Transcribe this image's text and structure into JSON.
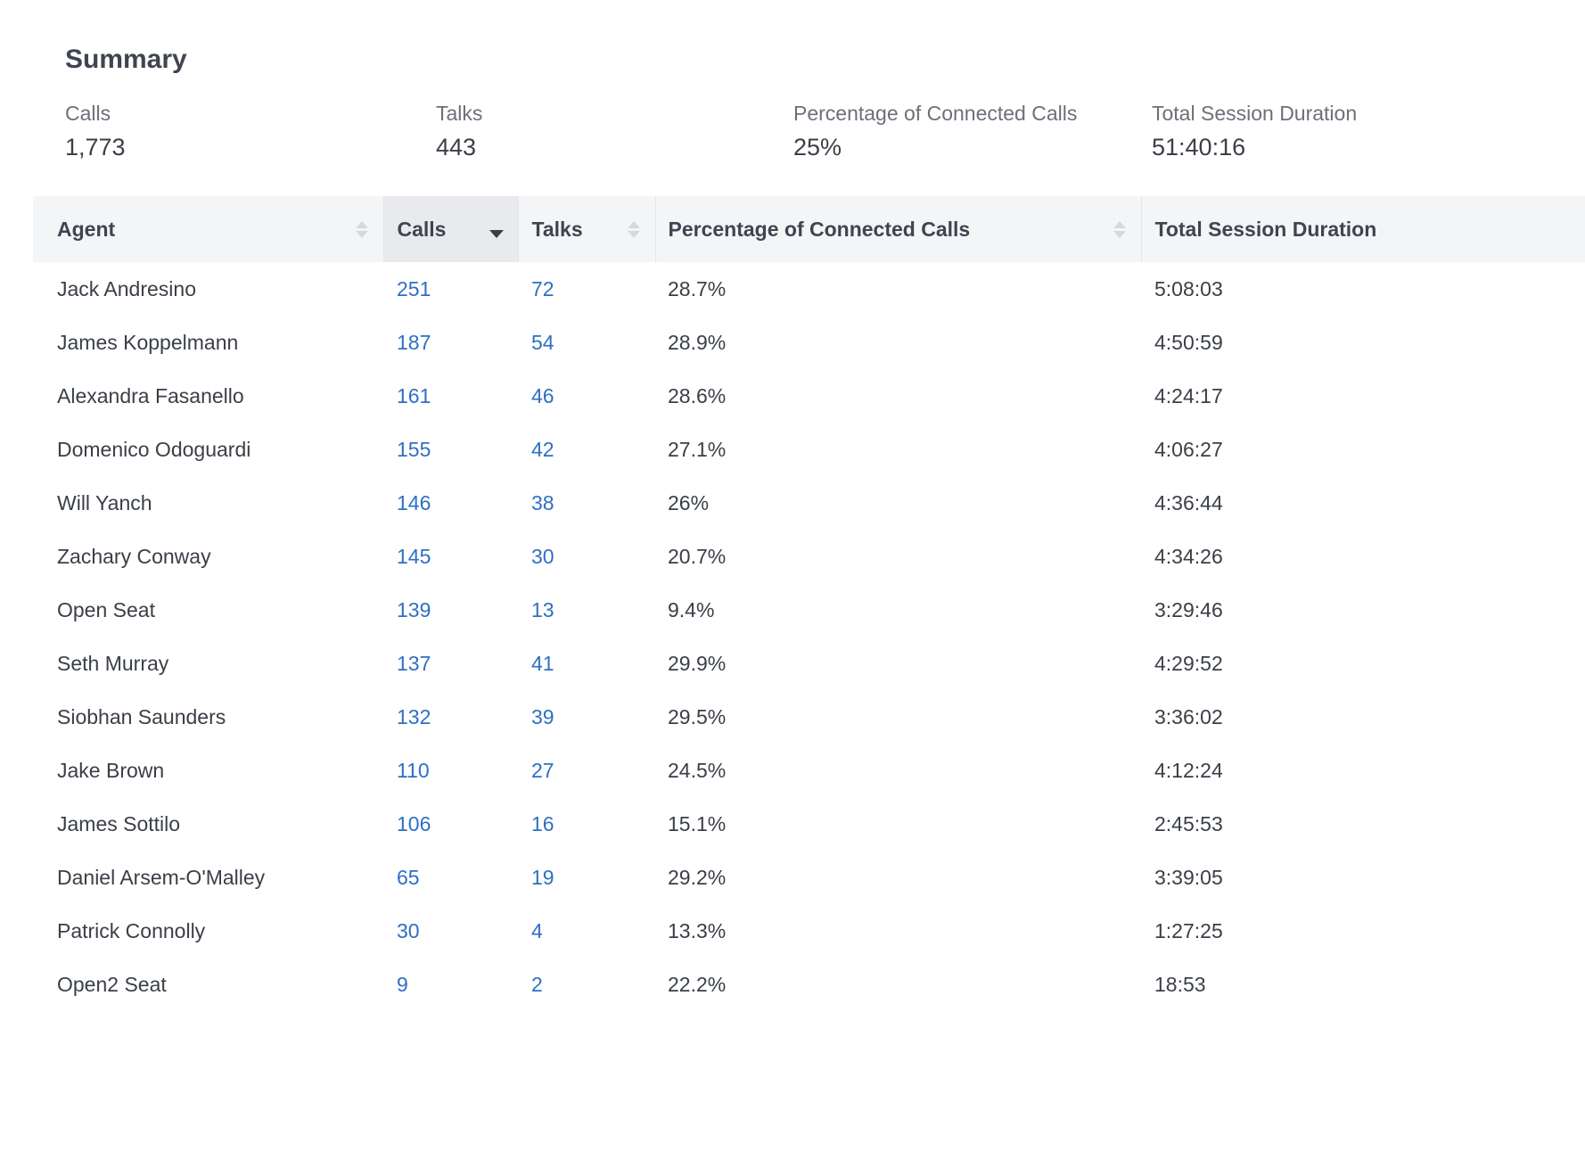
{
  "summary": {
    "title": "Summary",
    "stats": [
      {
        "label": "Calls",
        "value": "1,773"
      },
      {
        "label": "Talks",
        "value": "443"
      },
      {
        "label": "Percentage of Connected Calls",
        "value": "25%"
      },
      {
        "label": "Total Session Duration",
        "value": "51:40:16"
      }
    ]
  },
  "table": {
    "columns": [
      {
        "label": "Agent",
        "sort": "none"
      },
      {
        "label": "Calls",
        "sort": "descending"
      },
      {
        "label": "Talks",
        "sort": "none"
      },
      {
        "label": "Percentage of Connected Calls",
        "sort": "none"
      },
      {
        "label": "Total Session Duration",
        "sort": "none"
      }
    ],
    "rows": [
      {
        "agent": "Jack Andresino",
        "calls": "251",
        "talks": "72",
        "pct": "28.7%",
        "duration": "5:08:03"
      },
      {
        "agent": "James Koppelmann",
        "calls": "187",
        "talks": "54",
        "pct": "28.9%",
        "duration": "4:50:59"
      },
      {
        "agent": "Alexandra Fasanello",
        "calls": "161",
        "talks": "46",
        "pct": "28.6%",
        "duration": "4:24:17"
      },
      {
        "agent": "Domenico Odoguardi",
        "calls": "155",
        "talks": "42",
        "pct": "27.1%",
        "duration": "4:06:27"
      },
      {
        "agent": "Will Yanch",
        "calls": "146",
        "talks": "38",
        "pct": "26%",
        "duration": "4:36:44"
      },
      {
        "agent": "Zachary Conway",
        "calls": "145",
        "talks": "30",
        "pct": "20.7%",
        "duration": "4:34:26"
      },
      {
        "agent": "Open Seat",
        "calls": "139",
        "talks": "13",
        "pct": "9.4%",
        "duration": "3:29:46"
      },
      {
        "agent": "Seth Murray",
        "calls": "137",
        "talks": "41",
        "pct": "29.9%",
        "duration": "4:29:52"
      },
      {
        "agent": "Siobhan Saunders",
        "calls": "132",
        "talks": "39",
        "pct": "29.5%",
        "duration": "3:36:02"
      },
      {
        "agent": "Jake Brown",
        "calls": "110",
        "talks": "27",
        "pct": "24.5%",
        "duration": "4:12:24"
      },
      {
        "agent": "James Sottilo",
        "calls": "106",
        "talks": "16",
        "pct": "15.1%",
        "duration": "2:45:53"
      },
      {
        "agent": "Daniel Arsem-O'Malley",
        "calls": "65",
        "talks": "19",
        "pct": "29.2%",
        "duration": "3:39:05"
      },
      {
        "agent": "Patrick Connolly",
        "calls": "30",
        "talks": "4",
        "pct": "13.3%",
        "duration": "1:27:25"
      },
      {
        "agent": "Open2 Seat",
        "calls": "9",
        "talks": "2",
        "pct": "22.2%",
        "duration": "18:53"
      }
    ]
  },
  "colors": {
    "link": "#2f6fc3",
    "header_bg": "#f4f5f7",
    "active_header_bg": "#e9eaed",
    "text": "#3a3f47"
  }
}
